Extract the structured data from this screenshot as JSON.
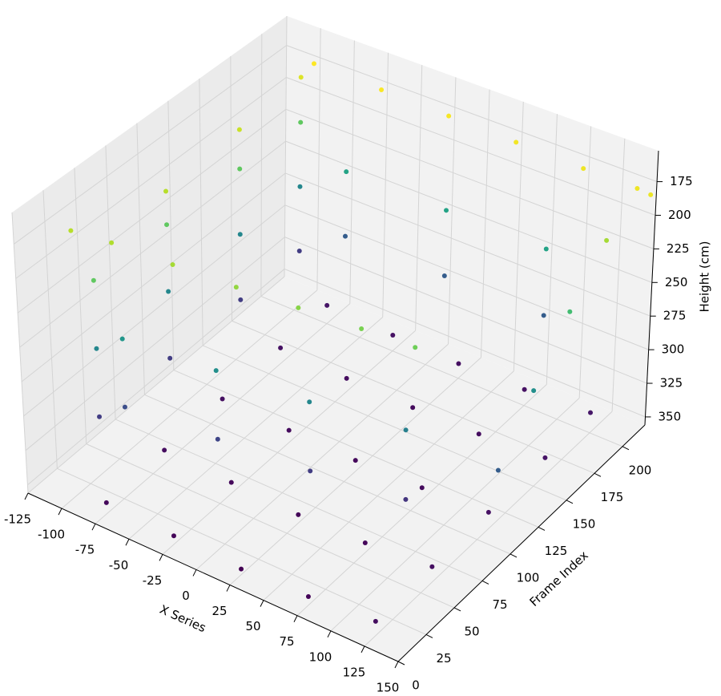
{
  "chart_data": {
    "type": "scatter3d",
    "xlabel": "X Series",
    "ylabel": "Frame Index",
    "zlabel": "Height (cm)",
    "xlim": [
      -125,
      150
    ],
    "ylim": [
      0,
      220
    ],
    "zlim": [
      356,
      152
    ],
    "xticks": [
      -125,
      -100,
      -75,
      -50,
      -25,
      0,
      25,
      50,
      75,
      100,
      125,
      150
    ],
    "yticks": [
      0,
      25,
      50,
      75,
      100,
      125,
      150,
      175,
      200
    ],
    "zticks": [
      175,
      200,
      225,
      250,
      275,
      300,
      325,
      350
    ],
    "grid": true,
    "colormap_colors": [
      "#440154",
      "#482878",
      "#3e4989",
      "#31688e",
      "#26828e",
      "#1f9e89",
      "#35b779",
      "#6ece58",
      "#b5de2b",
      "#fde725"
    ],
    "x": [
      -75,
      -25,
      25,
      75,
      125,
      -75,
      -25,
      25,
      75,
      125,
      -75,
      -25,
      25,
      75,
      125,
      -75,
      -25,
      25,
      75,
      125,
      -75,
      -25,
      25,
      75,
      125,
      -105,
      -105,
      -105,
      -105,
      -105,
      -105,
      -105,
      -105,
      -105,
      -105,
      -105,
      -105,
      -105,
      -105,
      -105,
      -100,
      -50,
      0,
      50,
      100,
      150,
      -75,
      0,
      75,
      -75,
      0,
      75,
      140,
      140,
      140,
      140,
      140,
      -125,
      -100,
      -60,
      -20,
      20,
      60,
      95,
      -90,
      -90,
      -30,
      -30,
      30,
      30,
      90,
      90
    ],
    "y": [
      10,
      10,
      10,
      10,
      10,
      60,
      60,
      60,
      60,
      60,
      110,
      110,
      110,
      110,
      110,
      160,
      160,
      160,
      160,
      160,
      200,
      200,
      200,
      200,
      200,
      40,
      40,
      40,
      100,
      100,
      100,
      160,
      160,
      160,
      210,
      210,
      210,
      100,
      160,
      210,
      215,
      215,
      215,
      215,
      215,
      215,
      215,
      215,
      215,
      215,
      215,
      215,
      100,
      130,
      160,
      190,
      215,
      45,
      50,
      55,
      62,
      68,
      75,
      80,
      45,
      45,
      55,
      55,
      65,
      65,
      78,
      78
    ],
    "z": [
      348,
      350,
      352,
      350,
      346,
      346,
      348,
      350,
      349,
      345,
      345,
      347,
      348,
      347,
      344,
      344,
      346,
      347,
      346,
      343,
      342,
      344,
      345,
      344,
      341,
      320,
      270,
      220,
      320,
      270,
      220,
      320,
      270,
      220,
      320,
      270,
      220,
      195,
      190,
      185,
      176,
      177,
      178,
      179,
      180,
      181,
      250,
      250,
      250,
      300,
      300,
      300,
      300,
      265,
      230,
      200,
      180,
      195,
      197,
      200,
      205,
      208,
      212,
      215,
      260,
      310,
      265,
      315,
      270,
      320,
      275,
      325
    ]
  }
}
